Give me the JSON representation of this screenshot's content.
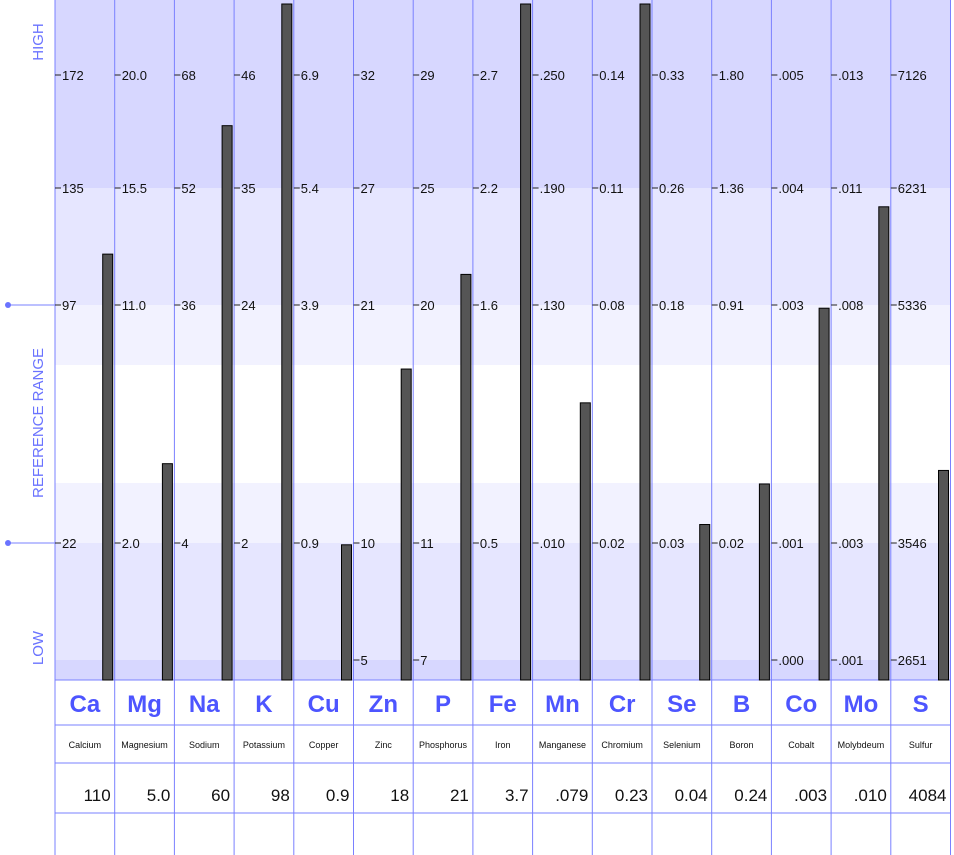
{
  "chart_data": {
    "type": "bar",
    "axis_labels": {
      "high": "HIGH",
      "reference": "REFERENCE RANGE",
      "low": "LOW"
    },
    "elements": [
      {
        "symbol": "Ca",
        "name": "Calcium",
        "value": "110",
        "ticks": [
          "172",
          "135",
          "97",
          "22"
        ],
        "level": 0.63
      },
      {
        "symbol": "Mg",
        "name": "Magnesium",
        "value": "5.0",
        "ticks": [
          "20.0",
          "15.5",
          "11.0",
          "2.0"
        ],
        "level": 0.32
      },
      {
        "symbol": "Na",
        "name": "Sodium",
        "value": "60",
        "ticks": [
          "68",
          "52",
          "36",
          "4"
        ],
        "level": 0.82
      },
      {
        "symbol": "K",
        "name": "Potassium",
        "value": "98",
        "ticks": [
          "46",
          "35",
          "24",
          "2"
        ],
        "level": 1.0
      },
      {
        "symbol": "Cu",
        "name": "Copper",
        "value": "0.9",
        "ticks": [
          "6.9",
          "5.4",
          "3.9",
          "0.9"
        ],
        "level": 0.2
      },
      {
        "symbol": "Zn",
        "name": "Zinc",
        "value": "18",
        "ticks": [
          "32",
          "27",
          "21",
          "10",
          "5"
        ],
        "level": 0.46
      },
      {
        "symbol": "P",
        "name": "Phosphorus",
        "value": "21",
        "ticks": [
          "29",
          "25",
          "20",
          "11",
          "7"
        ],
        "level": 0.6
      },
      {
        "symbol": "Fe",
        "name": "Iron",
        "value": "3.7",
        "ticks": [
          "2.7",
          "2.2",
          "1.6",
          "0.5"
        ],
        "level": 1.0
      },
      {
        "symbol": "Mn",
        "name": "Manganese",
        "value": ".079",
        "ticks": [
          ".250",
          ".190",
          ".130",
          ".010"
        ],
        "level": 0.41
      },
      {
        "symbol": "Cr",
        "name": "Chromium",
        "value": "0.23",
        "ticks": [
          "0.14",
          "0.11",
          "0.08",
          "0.02"
        ],
        "level": 1.0
      },
      {
        "symbol": "Se",
        "name": "Selenium",
        "value": "0.04",
        "ticks": [
          "0.33",
          "0.26",
          "0.18",
          "0.03"
        ],
        "level": 0.23
      },
      {
        "symbol": "B",
        "name": "Boron",
        "value": "0.24",
        "ticks": [
          "1.80",
          "1.36",
          "0.91",
          "0.02"
        ],
        "level": 0.29
      },
      {
        "symbol": "Co",
        "name": "Cobalt",
        "value": ".003",
        "ticks": [
          ".005",
          ".004",
          ".003",
          ".001",
          ".000"
        ],
        "level": 0.55
      },
      {
        "symbol": "Mo",
        "name": "Molybdeum",
        "value": ".010",
        "ticks": [
          ".013",
          ".011",
          ".008",
          ".003",
          ".001"
        ],
        "level": 0.7
      },
      {
        "symbol": "S",
        "name": "Sulfur",
        "value": "4084",
        "ticks": [
          "7126",
          "6231",
          "5336",
          "3546",
          "2651"
        ],
        "level": 0.31
      }
    ]
  }
}
